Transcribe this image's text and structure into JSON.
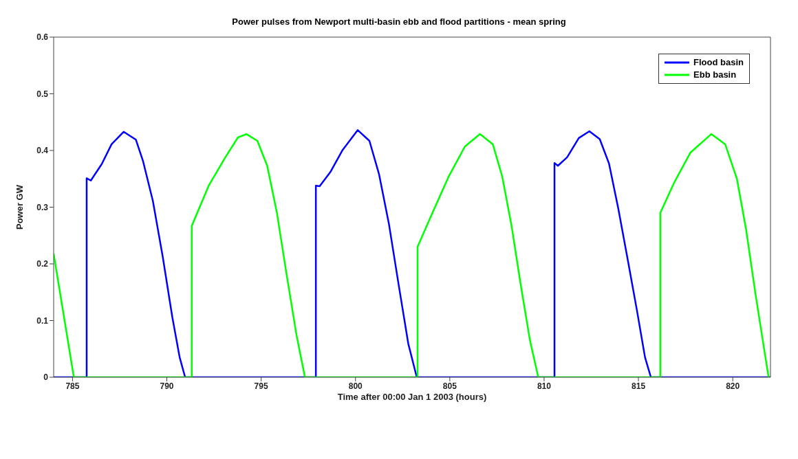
{
  "chart_data": {
    "type": "line",
    "title": "Power pulses from Newport multi-basin ebb and flood partitions - mean spring",
    "xlabel": "Time after 00:00 Jan 1 2003 (hours)",
    "ylabel": "Power GW",
    "xlim": [
      784,
      822
    ],
    "xticks": [
      785,
      790,
      795,
      800,
      805,
      810,
      815,
      820
    ],
    "ylim": [
      0,
      0.6
    ],
    "yticks": [
      0,
      0.1,
      0.2,
      0.3,
      0.4,
      0.5,
      0.6
    ],
    "legend": "top right",
    "marker": "none",
    "line_style": "solid",
    "series": [
      {
        "name": "Flood basin",
        "color": "#0000ff",
        "x": [
          784,
          785.75,
          785.75,
          785.97,
          786.55,
          787.07,
          787.71,
          788.36,
          788.74,
          789.26,
          789.78,
          790.29,
          790.68,
          790.97,
          797.9,
          797.9,
          798.1,
          798.67,
          799.32,
          800.12,
          800.74,
          801.25,
          801.77,
          802.28,
          802.8,
          803.25,
          810.55,
          810.55,
          810.73,
          811.22,
          811.84,
          812.4,
          812.95,
          813.44,
          813.93,
          814.43,
          814.92,
          815.35,
          815.66,
          822
        ],
        "values": [
          0,
          0,
          0.351,
          0.347,
          0.376,
          0.411,
          0.433,
          0.419,
          0.381,
          0.311,
          0.213,
          0.106,
          0.035,
          0,
          0,
          0.338,
          0.337,
          0.362,
          0.401,
          0.436,
          0.417,
          0.358,
          0.271,
          0.165,
          0.059,
          0,
          0,
          0.378,
          0.373,
          0.388,
          0.422,
          0.434,
          0.42,
          0.377,
          0.298,
          0.208,
          0.118,
          0.035,
          0,
          0
        ]
      },
      {
        "name": "Ebb basin",
        "color": "#00ff00",
        "x": [
          784,
          785.07,
          791.32,
          791.32,
          792.22,
          793.12,
          793.77,
          794.22,
          794.8,
          795.32,
          795.83,
          796.35,
          796.87,
          797.32,
          803.29,
          803.29,
          804.08,
          804.94,
          805.8,
          806.6,
          807.28,
          807.78,
          808.27,
          808.76,
          809.25,
          809.69,
          816.16,
          816.16,
          816.89,
          817.75,
          818.86,
          819.6,
          820.22,
          820.71,
          821.2,
          821.7,
          821.9
        ],
        "values": [
          0.218,
          0,
          0,
          0.267,
          0.338,
          0.389,
          0.423,
          0.429,
          0.417,
          0.373,
          0.291,
          0.181,
          0.075,
          0,
          0,
          0.23,
          0.29,
          0.354,
          0.407,
          0.429,
          0.411,
          0.354,
          0.268,
          0.163,
          0.065,
          0,
          0,
          0.29,
          0.343,
          0.396,
          0.429,
          0.411,
          0.35,
          0.26,
          0.148,
          0.042,
          0
        ]
      }
    ]
  }
}
